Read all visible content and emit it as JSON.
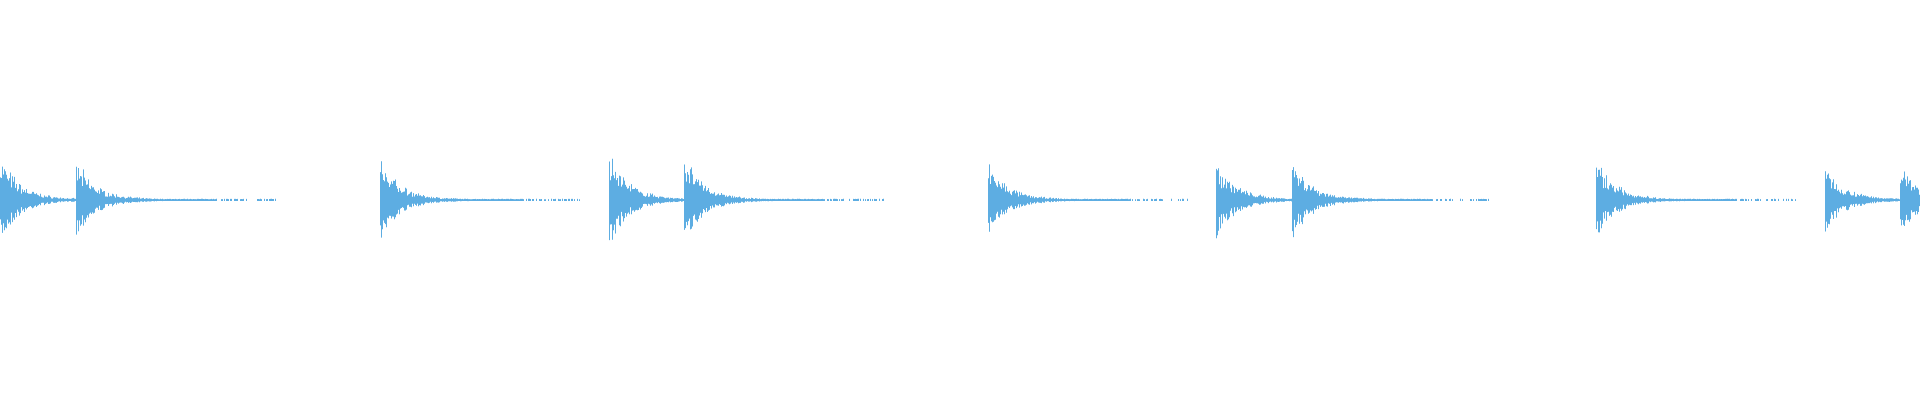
{
  "waveform": {
    "type": "audio-waveform",
    "color": "#5dade2",
    "background": "#ffffff"
  }
}
